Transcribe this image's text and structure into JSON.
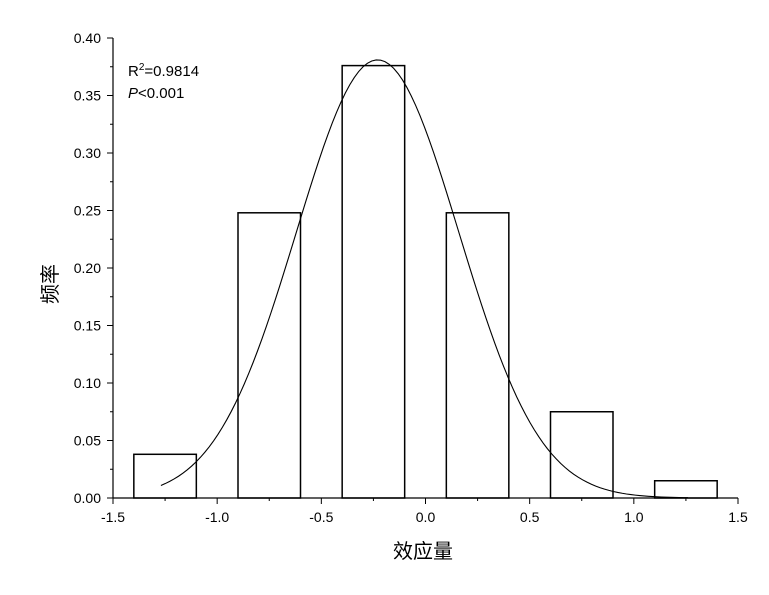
{
  "chart_data": {
    "type": "bar",
    "bins": [
      {
        "from": -1.4,
        "to": -1.1,
        "value": 0.038
      },
      {
        "from": -0.9,
        "to": -0.6,
        "value": 0.248
      },
      {
        "from": -0.4,
        "to": -0.1,
        "value": 0.376
      },
      {
        "from": 0.1,
        "to": 0.4,
        "value": 0.248
      },
      {
        "from": 0.6,
        "to": 0.9,
        "value": 0.075
      },
      {
        "from": 1.1,
        "to": 1.4,
        "value": 0.015
      }
    ],
    "fit_curve": {
      "type": "gaussian",
      "mean": -0.23,
      "peak": 0.381,
      "sigma": 0.39,
      "x_range": [
        -1.27,
        1.26
      ]
    },
    "title": "",
    "xlabel": "效应量",
    "ylabel": "频率",
    "xlim": [
      -1.5,
      1.5
    ],
    "ylim": [
      0,
      0.4
    ],
    "x_ticks": [
      "-1.5",
      "-1.0",
      "-0.5",
      "0.0",
      "0.5",
      "1.0",
      "1.5"
    ],
    "y_ticks": [
      "0.00",
      "0.05",
      "0.10",
      "0.15",
      "0.20",
      "0.25",
      "0.30",
      "0.35",
      "0.40"
    ],
    "annotations": {
      "r_label": "R",
      "r_superscript": "2",
      "r_value": "=0.9814",
      "p_label": "P",
      "p_value": "<0.001"
    },
    "grid": false
  }
}
